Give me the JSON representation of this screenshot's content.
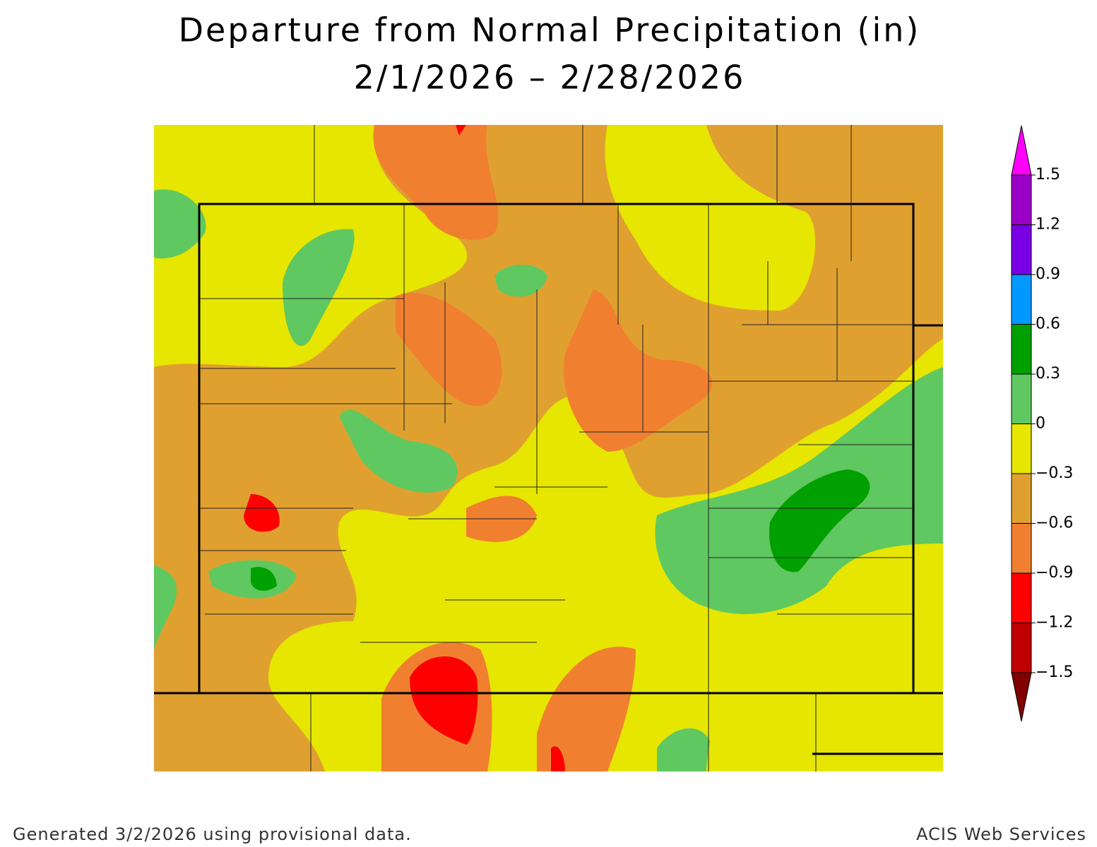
{
  "header": {
    "title": "Departure from Normal Precipitation (in)",
    "subtitle": "2/1/2026 – 2/28/2026"
  },
  "legend": {
    "ticks": [
      1.5,
      1.2,
      0.9,
      0.6,
      0.3,
      0,
      {
        "value": -0.3,
        "label": "−0.3"
      },
      {
        "value": -0.6,
        "label": "−0.6"
      },
      {
        "value": -0.9,
        "label": "−0.9"
      },
      {
        "value": -1.2,
        "label": "−1.2"
      },
      {
        "value": -1.5,
        "label": "−1.5"
      }
    ],
    "colors": [
      "#ff00ff",
      "#9a00c8",
      "#7a00e6",
      "#0099ff",
      "#00a000",
      "#60c860",
      "#e6e600",
      "#e0a030",
      "#f08030",
      "#ff0000",
      "#c00000",
      "#800000"
    ]
  },
  "footer": {
    "left": "Generated 3/2/2026 using provisional data.",
    "right": "ACIS Web Services"
  }
}
